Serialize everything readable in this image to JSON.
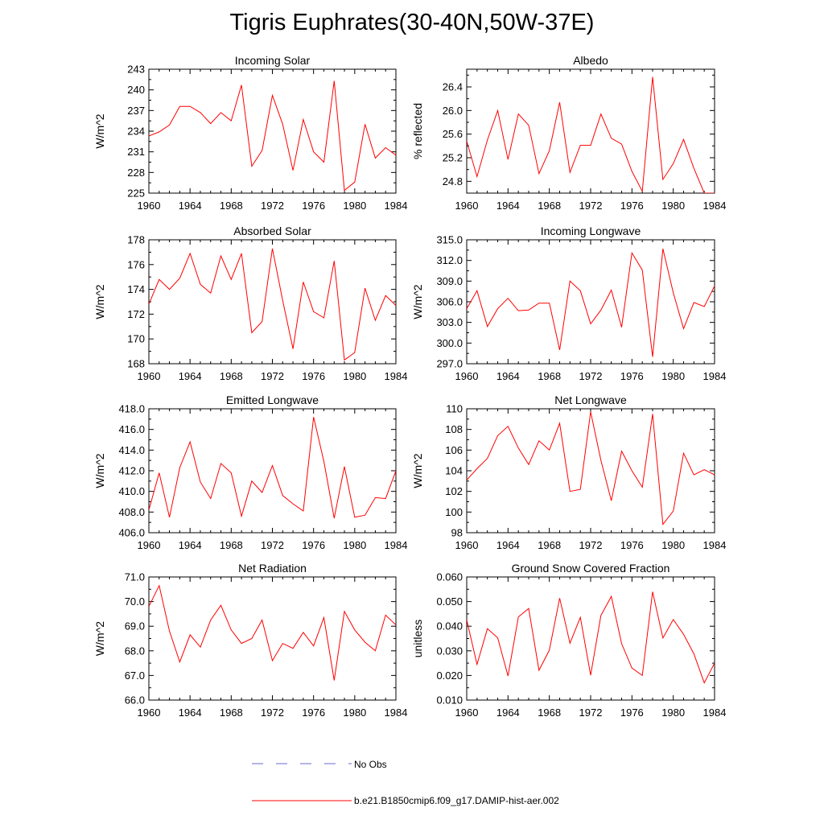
{
  "title": "Tigris Euphrates(30-40N,50W-37E)",
  "legend": {
    "items": [
      {
        "label": "No Obs",
        "color": "#6a6acd",
        "style": "dashed"
      },
      {
        "label": "b.e21.B1850cmip6.f09_g17.DAMIP-hist-aer.002",
        "color": "#ff0000",
        "style": "solid"
      }
    ]
  },
  "chart_data": [
    {
      "type": "line",
      "title": "Incoming Solar",
      "ylabel": "W/m^2",
      "xlim": [
        1960,
        1984
      ],
      "ylim": [
        225,
        243
      ],
      "xticks": [
        "1960",
        "1964",
        "1968",
        "1972",
        "1976",
        "1980",
        "1984"
      ],
      "yticks": [
        "225",
        "228",
        "231",
        "234",
        "237",
        "240",
        "243"
      ],
      "x": [
        1960,
        1961,
        1962,
        1963,
        1964,
        1965,
        1966,
        1967,
        1968,
        1969,
        1970,
        1971,
        1972,
        1973,
        1974,
        1975,
        1976,
        1977,
        1978,
        1979,
        1980,
        1981,
        1982,
        1983,
        1984
      ],
      "series": [
        {
          "color": "#ff0000",
          "values": [
            233.3,
            233.9,
            234.9,
            237.6,
            237.6,
            236.7,
            235.1,
            236.7,
            235.5,
            240.7,
            228.9,
            231.2,
            239.2,
            235.0,
            228.3,
            235.7,
            231.0,
            229.5,
            241.3,
            225.4,
            226.6,
            235.0,
            230.1,
            231.6,
            230.5
          ]
        }
      ]
    },
    {
      "type": "line",
      "title": "Albedo",
      "ylabel": "% reflected",
      "xlim": [
        1960,
        1984
      ],
      "ylim": [
        24.6,
        26.7
      ],
      "xticks": [
        "1960",
        "1964",
        "1968",
        "1972",
        "1976",
        "1980",
        "1984"
      ],
      "yticks": [
        "24.8",
        "25.2",
        "25.6",
        "26.0",
        "26.4"
      ],
      "x": [
        1960,
        1961,
        1962,
        1963,
        1964,
        1965,
        1966,
        1967,
        1968,
        1969,
        1970,
        1971,
        1972,
        1973,
        1974,
        1975,
        1976,
        1977,
        1978,
        1979,
        1980,
        1981,
        1982,
        1983,
        1984
      ],
      "series": [
        {
          "color": "#ff0000",
          "values": [
            25.48,
            24.88,
            25.5,
            26.0,
            25.17,
            25.94,
            25.75,
            24.93,
            25.32,
            26.14,
            24.95,
            25.41,
            25.41,
            25.94,
            25.53,
            25.43,
            24.97,
            24.63,
            26.57,
            24.83,
            25.1,
            25.51,
            25.02,
            24.6,
            24.6
          ]
        }
      ]
    },
    {
      "type": "line",
      "title": "Absorbed Solar",
      "ylabel": "W/m^2",
      "xlim": [
        1960,
        1984
      ],
      "ylim": [
        168,
        178
      ],
      "xticks": [
        "1960",
        "1964",
        "1968",
        "1972",
        "1976",
        "1980",
        "1984"
      ],
      "yticks": [
        "168",
        "170",
        "172",
        "174",
        "176",
        "178"
      ],
      "x": [
        1960,
        1961,
        1962,
        1963,
        1964,
        1965,
        1966,
        1967,
        1968,
        1969,
        1970,
        1971,
        1972,
        1973,
        1974,
        1975,
        1976,
        1977,
        1978,
        1979,
        1980,
        1981,
        1982,
        1983,
        1984
      ],
      "series": [
        {
          "color": "#ff0000",
          "values": [
            172.8,
            174.8,
            174.0,
            174.9,
            176.9,
            174.4,
            173.7,
            176.7,
            174.8,
            176.9,
            170.5,
            171.4,
            177.3,
            173.1,
            169.2,
            174.6,
            172.2,
            171.7,
            176.3,
            168.3,
            168.9,
            174.1,
            171.5,
            173.5,
            172.7
          ]
        }
      ]
    },
    {
      "type": "line",
      "title": "Incoming Longwave",
      "ylabel": "W/m^2",
      "xlim": [
        1960,
        1984
      ],
      "ylim": [
        297,
        315
      ],
      "xticks": [
        "1960",
        "1964",
        "1968",
        "1972",
        "1976",
        "1980",
        "1984"
      ],
      "yticks": [
        "297.0",
        "300.0",
        "303.0",
        "306.0",
        "309.0",
        "312.0",
        "315.0"
      ],
      "x": [
        1960,
        1961,
        1962,
        1963,
        1964,
        1965,
        1966,
        1967,
        1968,
        1969,
        1970,
        1971,
        1972,
        1973,
        1974,
        1975,
        1976,
        1977,
        1978,
        1979,
        1980,
        1981,
        1982,
        1983,
        1984
      ],
      "series": [
        {
          "color": "#ff0000",
          "values": [
            305.0,
            307.6,
            302.4,
            305.0,
            306.5,
            304.7,
            304.8,
            305.8,
            305.8,
            299.0,
            309.0,
            307.6,
            302.8,
            304.8,
            307.7,
            302.3,
            313.1,
            310.6,
            298.0,
            313.7,
            307.3,
            302.1,
            305.9,
            305.3,
            308.3
          ]
        }
      ]
    },
    {
      "type": "line",
      "title": "Emitted Longwave",
      "ylabel": "W/m^2",
      "xlim": [
        1960,
        1984
      ],
      "ylim": [
        406,
        418
      ],
      "xticks": [
        "1960",
        "1964",
        "1968",
        "1972",
        "1976",
        "1980",
        "1984"
      ],
      "yticks": [
        "406.0",
        "408.0",
        "410.0",
        "412.0",
        "414.0",
        "416.0",
        "418.0"
      ],
      "x": [
        1960,
        1961,
        1962,
        1963,
        1964,
        1965,
        1966,
        1967,
        1968,
        1969,
        1970,
        1971,
        1972,
        1973,
        1974,
        1975,
        1976,
        1977,
        1978,
        1979,
        1980,
        1981,
        1982,
        1983,
        1984
      ],
      "series": [
        {
          "color": "#ff0000",
          "values": [
            408.2,
            411.8,
            407.5,
            412.3,
            414.8,
            410.9,
            409.3,
            412.7,
            411.8,
            407.6,
            411.0,
            409.9,
            412.5,
            409.6,
            408.8,
            408.1,
            417.2,
            412.9,
            407.4,
            412.4,
            407.5,
            407.7,
            409.4,
            409.3,
            412.0
          ]
        }
      ]
    },
    {
      "type": "line",
      "title": "Net Longwave",
      "ylabel": "W/m^2",
      "xlim": [
        1960,
        1984
      ],
      "ylim": [
        98,
        110
      ],
      "xticks": [
        "1960",
        "1964",
        "1968",
        "1972",
        "1976",
        "1980",
        "1984"
      ],
      "yticks": [
        "98",
        "100",
        "102",
        "104",
        "106",
        "108",
        "110"
      ],
      "x": [
        1960,
        1961,
        1962,
        1963,
        1964,
        1965,
        1966,
        1967,
        1968,
        1969,
        1970,
        1971,
        1972,
        1973,
        1974,
        1975,
        1976,
        1977,
        1978,
        1979,
        1980,
        1981,
        1982,
        1983,
        1984
      ],
      "series": [
        {
          "color": "#ff0000",
          "values": [
            103.1,
            104.2,
            105.2,
            107.4,
            108.3,
            106.2,
            104.6,
            106.9,
            106.0,
            108.6,
            102.0,
            102.2,
            109.7,
            105.0,
            101.1,
            105.9,
            104.0,
            102.4,
            109.5,
            98.8,
            100.1,
            105.7,
            103.6,
            104.1,
            103.6
          ]
        }
      ]
    },
    {
      "type": "line",
      "title": "Net Radiation",
      "ylabel": "W/m^2",
      "xlim": [
        1960,
        1984
      ],
      "ylim": [
        66,
        71
      ],
      "xticks": [
        "1960",
        "1964",
        "1968",
        "1972",
        "1976",
        "1980",
        "1984"
      ],
      "yticks": [
        "66.0",
        "67.0",
        "68.0",
        "69.0",
        "70.0",
        "71.0"
      ],
      "x": [
        1960,
        1961,
        1962,
        1963,
        1964,
        1965,
        1966,
        1967,
        1968,
        1969,
        1970,
        1971,
        1972,
        1973,
        1974,
        1975,
        1976,
        1977,
        1978,
        1979,
        1980,
        1981,
        1982,
        1983,
        1984
      ],
      "series": [
        {
          "color": "#ff0000",
          "values": [
            69.8,
            70.65,
            68.8,
            67.55,
            68.65,
            68.15,
            69.25,
            69.85,
            68.85,
            68.3,
            68.5,
            69.25,
            67.6,
            68.3,
            68.1,
            68.75,
            68.2,
            69.35,
            66.8,
            69.6,
            68.85,
            68.35,
            68.0,
            69.45,
            69.05
          ]
        }
      ]
    },
    {
      "type": "line",
      "title": "Ground Snow Covered Fraction",
      "ylabel": "unitless",
      "xlim": [
        1960,
        1984
      ],
      "ylim": [
        0.01,
        0.06
      ],
      "xticks": [
        "1960",
        "1964",
        "1968",
        "1972",
        "1976",
        "1980",
        "1984"
      ],
      "yticks": [
        "0.010",
        "0.020",
        "0.030",
        "0.040",
        "0.050",
        "0.060"
      ],
      "x": [
        1960,
        1961,
        1962,
        1963,
        1964,
        1965,
        1966,
        1967,
        1968,
        1969,
        1970,
        1971,
        1972,
        1973,
        1974,
        1975,
        1976,
        1977,
        1978,
        1979,
        1980,
        1981,
        1982,
        1983,
        1984
      ],
      "series": [
        {
          "color": "#ff0000",
          "values": [
            0.0425,
            0.0245,
            0.039,
            0.0353,
            0.0198,
            0.0438,
            0.0472,
            0.0221,
            0.0303,
            0.0514,
            0.0331,
            0.0436,
            0.0201,
            0.0444,
            0.0521,
            0.0329,
            0.023,
            0.02,
            0.054,
            0.0352,
            0.0427,
            0.0367,
            0.0288,
            0.017,
            0.025
          ]
        }
      ]
    }
  ]
}
